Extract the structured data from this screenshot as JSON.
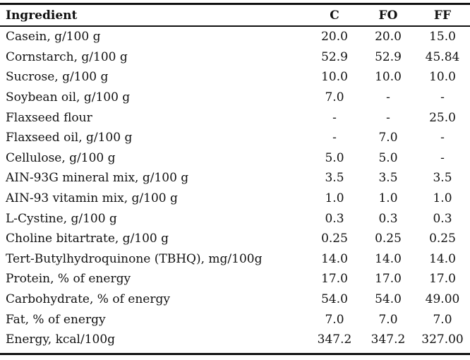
{
  "table": {
    "headers": {
      "ingredient": "Ingredient",
      "c": "C",
      "fo": "FO",
      "ff": "FF"
    },
    "rows": [
      {
        "ingredient": "Casein, g/100 g",
        "c": "20.0",
        "fo": "20.0",
        "ff": "15.0"
      },
      {
        "ingredient": "Cornstarch, g/100 g",
        "c": "52.9",
        "fo": "52.9",
        "ff": "45.84"
      },
      {
        "ingredient": "Sucrose, g/100 g",
        "c": "10.0",
        "fo": "10.0",
        "ff": "10.0"
      },
      {
        "ingredient": "Soybean oil, g/100 g",
        "c": "7.0",
        "fo": "-",
        "ff": "-"
      },
      {
        "ingredient": "Flaxseed flour",
        "c": "-",
        "fo": "-",
        "ff": "25.0"
      },
      {
        "ingredient": "Flaxseed oil, g/100 g",
        "c": "-",
        "fo": "7.0",
        "ff": "-"
      },
      {
        "ingredient": "Cellulose, g/100 g",
        "c": "5.0",
        "fo": "5.0",
        "ff": "-"
      },
      {
        "ingredient": "AIN-93G mineral mix, g/100 g",
        "c": "3.5",
        "fo": "3.5",
        "ff": "3.5"
      },
      {
        "ingredient": "AIN-93 vitamin mix, g/100 g",
        "c": "1.0",
        "fo": "1.0",
        "ff": "1.0"
      },
      {
        "ingredient": "L-Cystine, g/100 g",
        "c": "0.3",
        "fo": "0.3",
        "ff": "0.3"
      },
      {
        "ingredient": "Choline bitartrate, g/100 g",
        "c": "0.25",
        "fo": "0.25",
        "ff": "0.25"
      },
      {
        "ingredient": "Tert-Butylhydroquinone (TBHQ), mg/100g",
        "c": "14.0",
        "fo": "14.0",
        "ff": "14.0"
      },
      {
        "ingredient": "Protein, % of energy",
        "c": "17.0",
        "fo": "17.0",
        "ff": "17.0"
      },
      {
        "ingredient": "Carbohydrate, % of energy",
        "c": "54.0",
        "fo": "54.0",
        "ff": "49.00"
      },
      {
        "ingredient": "Fat, % of energy",
        "c": "7.0",
        "fo": "7.0",
        "ff": "7.0"
      },
      {
        "ingredient": "Energy, kcal/100g",
        "c": "347.2",
        "fo": "347.2",
        "ff": "327.00"
      }
    ]
  }
}
